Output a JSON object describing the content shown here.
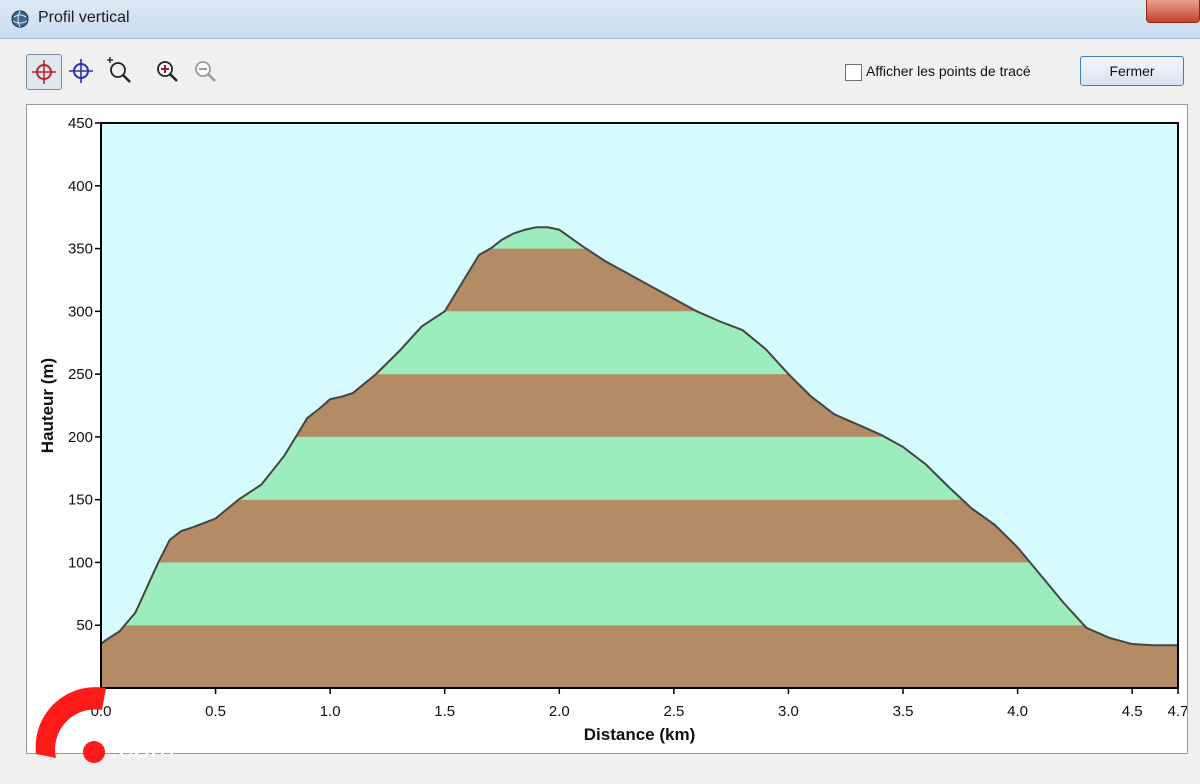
{
  "window": {
    "title": "Profil vertical"
  },
  "toolbar": {
    "tools": [
      {
        "icon": "crosshair-red-icon"
      },
      {
        "icon": "crosshair-blue-icon"
      },
      {
        "icon": "zoom-box-icon"
      },
      {
        "icon": "zoom-in-icon"
      },
      {
        "icon": "zoom-out-icon"
      }
    ],
    "show_points_label": "Afficher les points de tracé",
    "show_points_checked": false,
    "close_label": "Fermer"
  },
  "colors": {
    "band_brown": "#b38b64",
    "band_green": "#9cedbd",
    "sky": "#d5fbff",
    "outline": "#444444"
  },
  "watermark": {
    "text": ".com"
  },
  "chart_data": {
    "type": "area",
    "xlabel": "Distance   (km)",
    "ylabel": "Hauteur (m)",
    "xlim": [
      0,
      4.7
    ],
    "ylim": [
      0,
      450
    ],
    "x_ticks": [
      "0.0",
      "0.5",
      "1.0",
      "1.5",
      "2.0",
      "2.5",
      "3.0",
      "3.5",
      "4.0",
      "4.5",
      "4.7"
    ],
    "x_tick_values": [
      0,
      0.5,
      1.0,
      1.5,
      2.0,
      2.5,
      3.0,
      3.5,
      4.0,
      4.5,
      4.7
    ],
    "y_ticks": [
      "50",
      "100",
      "150",
      "200",
      "250",
      "300",
      "350",
      "400",
      "450"
    ],
    "y_tick_values": [
      50,
      100,
      150,
      200,
      250,
      300,
      350,
      400,
      450
    ],
    "band_step": 50,
    "grid": false,
    "legend": "none",
    "series": [
      {
        "x": [
          0.0,
          0.02,
          0.08,
          0.15,
          0.2,
          0.25,
          0.3,
          0.35,
          0.4,
          0.5,
          0.6,
          0.7,
          0.8,
          0.9,
          0.95,
          1.0,
          1.05,
          1.1,
          1.2,
          1.3,
          1.4,
          1.5,
          1.6,
          1.65,
          1.7,
          1.75,
          1.8,
          1.85,
          1.9,
          1.95,
          2.0,
          2.1,
          2.2,
          2.3,
          2.4,
          2.5,
          2.6,
          2.7,
          2.8,
          2.9,
          3.0,
          3.1,
          3.2,
          3.3,
          3.4,
          3.5,
          3.6,
          3.7,
          3.8,
          3.9,
          4.0,
          4.1,
          4.2,
          4.3,
          4.4,
          4.5,
          4.6,
          4.65,
          4.7
        ],
        "values": [
          35,
          38,
          45,
          60,
          80,
          100,
          118,
          125,
          128,
          135,
          150,
          162,
          185,
          215,
          222,
          230,
          232,
          235,
          250,
          268,
          288,
          300,
          330,
          345,
          350,
          357,
          362,
          365,
          367,
          367,
          365,
          352,
          340,
          330,
          320,
          310,
          300,
          292,
          285,
          270,
          250,
          232,
          218,
          210,
          202,
          192,
          178,
          160,
          143,
          130,
          112,
          90,
          68,
          48,
          40,
          35,
          34,
          34,
          34
        ]
      }
    ]
  }
}
